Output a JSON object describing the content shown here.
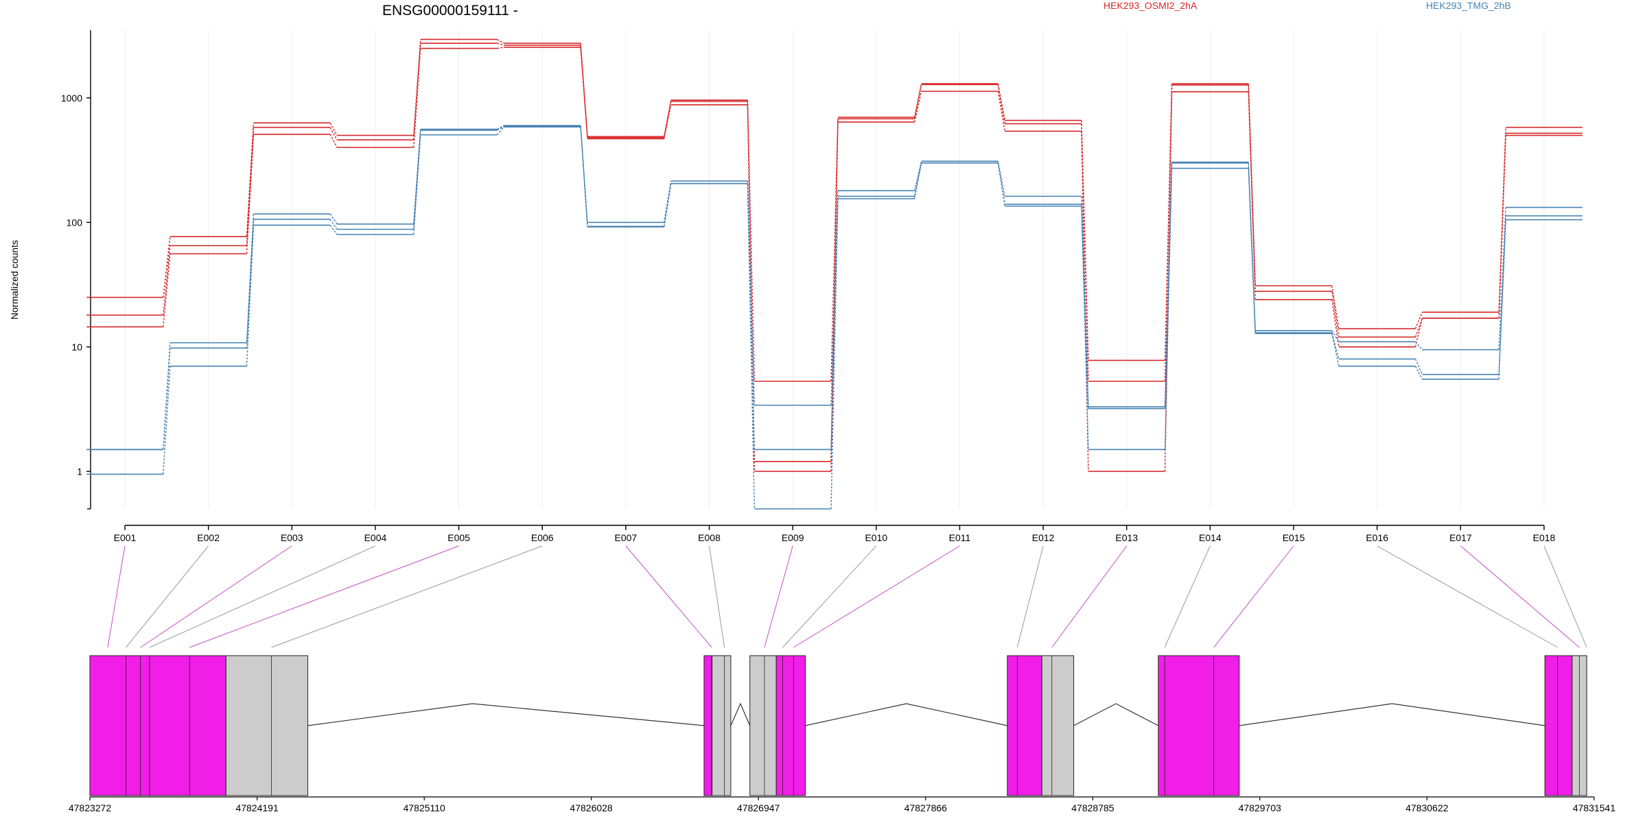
{
  "chart_data": {
    "type": "line",
    "title": "ENSG00000159111 -",
    "ylabel": "Normalized counts",
    "xlabel": "",
    "yscale": "log",
    "ylim": [
      0.5,
      3500
    ],
    "y_ticks": [
      "1",
      "10",
      "100",
      "1000"
    ],
    "y_tick_values": [
      1,
      10,
      100,
      1000
    ],
    "grid": true,
    "legend": "top",
    "categories": [
      "E001",
      "E002",
      "E003",
      "E004",
      "E005",
      "E006",
      "E007",
      "E008",
      "E009",
      "E010",
      "E011",
      "E012",
      "E013",
      "E014",
      "E015",
      "E016",
      "E017",
      "E018"
    ],
    "series": [
      {
        "name": "HEK293_OSMI2_2hA",
        "group": "HEK293_OSMI2_2hA",
        "color": "#d62728",
        "values": [
          25,
          77,
          630,
          500,
          2950,
          2750,
          490,
          960,
          5.3,
          700,
          1300,
          660,
          7.8,
          1300,
          31,
          14,
          19,
          580
        ]
      },
      {
        "name": "",
        "group": "HEK293_OSMI2_2hA",
        "color": "#d62728",
        "values": [
          18,
          65,
          580,
          460,
          2750,
          2650,
          480,
          940,
          1.2,
          680,
          1280,
          620,
          5.3,
          1270,
          28,
          12,
          17,
          520
        ]
      },
      {
        "name": "",
        "group": "HEK293_OSMI2_2hA",
        "color": "#d62728",
        "values": [
          14.5,
          56,
          510,
          400,
          2500,
          2550,
          470,
          880,
          1.0,
          640,
          1130,
          540,
          1.0,
          1120,
          24,
          10,
          17,
          500
        ]
      },
      {
        "name": "HEK293_TMG_2hB",
        "group": "HEK293_TMG_2hB",
        "color": "#4682b4",
        "values": [
          1.5,
          10.8,
          117,
          97,
          560,
          600,
          100,
          215,
          3.4,
          180,
          310,
          162,
          3.3,
          305,
          13.5,
          11,
          9.5,
          132
        ]
      },
      {
        "name": "",
        "group": "HEK293_TMG_2hB",
        "color": "#4682b4",
        "values": [
          1.5,
          9.8,
          106,
          88,
          550,
          590,
          93,
          205,
          1.5,
          162,
          300,
          140,
          3.2,
          300,
          13,
          8,
          6,
          113
        ]
      },
      {
        "name": "",
        "group": "HEK293_TMG_2hB",
        "color": "#4682b4",
        "values": [
          0.95,
          7,
          95,
          80,
          505,
          585,
          92,
          205,
          0.5,
          155,
          300,
          135,
          1.5,
          272,
          12.8,
          7,
          5.5,
          105
        ]
      }
    ],
    "legend_entries": [
      {
        "label": "HEK293_OSMI2_2hA",
        "color": "#d62728"
      },
      {
        "label": "HEK293_TMG_2hB",
        "color": "#4682b4"
      }
    ],
    "gene_model": {
      "genomic_ticks": [
        "47823272",
        "47824191",
        "47825110",
        "47826028",
        "47826947",
        "47827866",
        "47828785",
        "47829703",
        "47830622",
        "47831541"
      ],
      "genomic_tick_values": [
        47823272,
        47824191,
        47825110,
        47826028,
        47826947,
        47827866,
        47828785,
        47829703,
        47830622,
        47831541
      ],
      "exon_color": "#f01ee6",
      "utr_color": "#cccccc",
      "connector_color": "#c050c0",
      "blocks": [
        {
          "start": 47823272,
          "end": 47824020,
          "kind": "exon"
        },
        {
          "start": 47824020,
          "end": 47824470,
          "kind": "utr"
        },
        {
          "start": 47826648,
          "end": 47826692,
          "kind": "exon"
        },
        {
          "start": 47826692,
          "end": 47826795,
          "kind": "utr"
        },
        {
          "start": 47826900,
          "end": 47827045,
          "kind": "utr"
        },
        {
          "start": 47827045,
          "end": 47827205,
          "kind": "exon"
        },
        {
          "start": 47828315,
          "end": 47828505,
          "kind": "exon"
        },
        {
          "start": 47828505,
          "end": 47828680,
          "kind": "utr"
        },
        {
          "start": 47829145,
          "end": 47829590,
          "kind": "exon"
        },
        {
          "start": 47831270,
          "end": 47831420,
          "kind": "exon"
        },
        {
          "start": 47831420,
          "end": 47831500,
          "kind": "utr"
        }
      ],
      "exon_bin_starts": [
        47823370,
        47823470,
        47823550,
        47823600,
        47823820,
        47824270,
        47826690,
        47826760,
        47826980,
        47827080,
        47827140,
        47828370,
        47828560,
        47829180,
        47829450,
        47831340,
        47831460,
        47831500
      ],
      "introns": [
        {
          "start": 47824470,
          "end": 47826648,
          "apex": 47825375
        },
        {
          "start": 47826795,
          "end": 47826900,
          "apex": 47826848
        },
        {
          "start": 47827205,
          "end": 47828315,
          "apex": 47827760
        },
        {
          "start": 47828680,
          "end": 47829145,
          "apex": 47828912
        },
        {
          "start": 47829590,
          "end": 47831270,
          "apex": 47830430
        }
      ]
    }
  }
}
